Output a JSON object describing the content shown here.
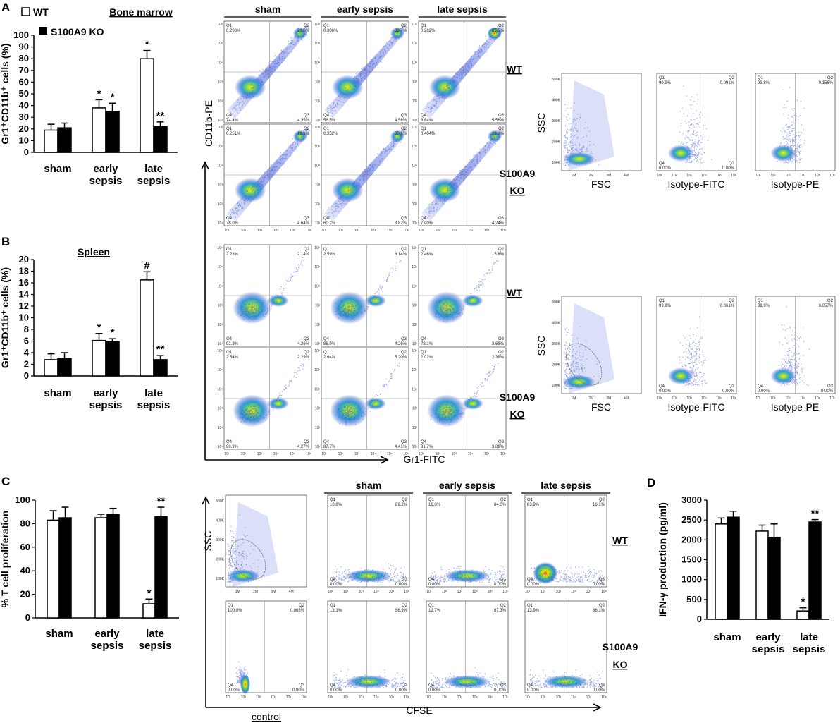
{
  "panels": {
    "a": "A",
    "b": "B",
    "c": "C",
    "d": "D"
  },
  "legend": {
    "wt": "WT",
    "ko": "S100A9 KO"
  },
  "chart_data": [
    {
      "id": "A",
      "type": "bar",
      "title": "Bone marrow",
      "ylabel": "Gr1⁺CD11b⁺ cells (%)",
      "ylim": [
        0,
        100
      ],
      "yticks": [
        0,
        10,
        20,
        30,
        40,
        50,
        60,
        70,
        80,
        90,
        100
      ],
      "categories": [
        "sham",
        "early\nsepsis",
        "late\nsepsis"
      ],
      "series": [
        {
          "name": "WT",
          "values": [
            19,
            38,
            80
          ],
          "errors": [
            5,
            7,
            7
          ],
          "marks": [
            "",
            "*",
            "*"
          ]
        },
        {
          "name": "S100A9 KO",
          "values": [
            21,
            35,
            22
          ],
          "errors": [
            4,
            7,
            4
          ],
          "marks": [
            "",
            "*",
            "**"
          ]
        }
      ]
    },
    {
      "id": "B",
      "type": "bar",
      "title": "Spleen",
      "ylabel": "Gr1⁺CD11b⁺ cells (%)",
      "ylim": [
        0,
        20
      ],
      "yticks": [
        0,
        2,
        4,
        6,
        8,
        10,
        12,
        14,
        16,
        18,
        20
      ],
      "categories": [
        "sham",
        "early\nsepsis",
        "late\nsepsis"
      ],
      "series": [
        {
          "name": "WT",
          "values": [
            2.8,
            6.1,
            16.5
          ],
          "errors": [
            1,
            1.2,
            1.4
          ],
          "marks": [
            "",
            "*",
            "#"
          ]
        },
        {
          "name": "S100A9 KO",
          "values": [
            3.0,
            5.9,
            2.8
          ],
          "errors": [
            1,
            0.5,
            0.7
          ],
          "marks": [
            "",
            "*",
            "**"
          ]
        }
      ]
    },
    {
      "id": "C",
      "type": "bar",
      "title": "",
      "ylabel": "% T cell proliferation",
      "ylim": [
        0,
        100
      ],
      "yticks": [
        0,
        20,
        40,
        60,
        80,
        100
      ],
      "categories": [
        "sham",
        "early\nsepsis",
        "late\nsepsis"
      ],
      "series": [
        {
          "name": "WT",
          "values": [
            83,
            85,
            12
          ],
          "errors": [
            8,
            3,
            4
          ],
          "marks": [
            "",
            "",
            "*"
          ]
        },
        {
          "name": "S100A9 KO",
          "values": [
            85,
            88,
            86
          ],
          "errors": [
            9,
            5,
            8
          ],
          "marks": [
            "",
            "",
            "**"
          ]
        }
      ]
    },
    {
      "id": "D",
      "type": "bar",
      "title": "",
      "ylabel": "IFN-γ production (pg/ml)",
      "ylim": [
        0,
        3000
      ],
      "yticks": [
        0,
        500,
        1000,
        1500,
        2000,
        2500,
        3000
      ],
      "categories": [
        "sham",
        "early\nsepsis",
        "late\nsepsis"
      ],
      "series": [
        {
          "name": "WT",
          "values": [
            2400,
            2220,
            210
          ],
          "errors": [
            150,
            150,
            80
          ],
          "marks": [
            "",
            "",
            "*"
          ]
        },
        {
          "name": "S100A9 KO",
          "values": [
            2570,
            2060,
            2450
          ],
          "errors": [
            150,
            340,
            60
          ],
          "marks": [
            "",
            "",
            "**"
          ]
        }
      ]
    }
  ],
  "flow": {
    "top_headers": [
      "sham",
      "early sepsis",
      "late sepsis"
    ],
    "ab_ylabel": "CD11b-PE",
    "ab_xlabel": "Gr1-FITC",
    "row_labels": {
      "wt": "WT",
      "ko_line1": "S100A9",
      "ko_line2": "KO"
    },
    "bm_wt": [
      [
        "0.298%",
        "21.0%",
        "74.4%",
        "4.35%"
      ],
      [
        "0.306%",
        "38.7%",
        "56.5%",
        "4.56%"
      ],
      [
        "0.282%",
        "85.5%",
        "8.64%",
        "5.58%"
      ]
    ],
    "bm_ko": [
      [
        "0.251%",
        "19.1%",
        "76.0%",
        "4.64%"
      ],
      [
        "0.352%",
        "35.6%",
        "60.2%",
        "3.82%"
      ],
      [
        "0.404%",
        "22.3%",
        "73.0%",
        "4.24%"
      ]
    ],
    "sp_wt": [
      [
        "2.28%",
        "2.14%",
        "91.3%",
        "4.26%"
      ],
      [
        "2.59%",
        "6.14%",
        "85.9%",
        "4.26%"
      ],
      [
        "2.46%",
        "15.8%",
        "78.1%",
        "3.68%"
      ]
    ],
    "sp_ko": [
      [
        "2.54%",
        "2.29%",
        "90.9%",
        "4.27%"
      ],
      [
        "2.64%",
        "5.20%",
        "87.7%",
        "4.41%"
      ],
      [
        "2.02%",
        "2.39%",
        "91.7%",
        "3.89%"
      ]
    ],
    "iso_a": {
      "fsc": "FSC",
      "ssc": "SSC",
      "fitc": "Isotype-FITC",
      "pe": "Isotype-PE",
      "fitc_q": [
        "99.9%",
        "0.091%",
        "0.00%",
        "0.00%"
      ],
      "pe_q": [
        "99.8%",
        "0.156%"
      ]
    },
    "iso_b": {
      "fsc": "FSC",
      "ssc": "SSC",
      "fitc": "Isotype-FITC",
      "pe": "Isotype-PE",
      "fitc_q": [
        "99.9%",
        "0.061%",
        "0.00%",
        "0.00%"
      ],
      "pe_q": [
        "99.9%",
        "0.057%",
        "0.00%",
        "0.00%"
      ]
    },
    "c_headers": [
      "sham",
      "early sepsis",
      "late sepsis"
    ],
    "c_xlabel": "CFSE",
    "c_control": "control",
    "c_ssc": "SSC",
    "c_wt": [
      [
        "10.8%",
        "89.2%"
      ],
      [
        "16.0%",
        "84.0%"
      ],
      [
        "83.9%",
        "16.1%"
      ]
    ],
    "c_ko": [
      [
        "13.1%",
        "86.9%"
      ],
      [
        "12.7%",
        "87.3%"
      ],
      [
        "13.9%",
        "86.1%"
      ]
    ],
    "c_control_q": [
      "100.0%",
      "0.008%"
    ],
    "quad_names": [
      "Q1",
      "Q2",
      "Q4",
      "Q3"
    ],
    "ssc_ticks": [
      "500K",
      "400K",
      "300K",
      "200K",
      "100K"
    ],
    "fsc_ticks": [
      "1M",
      "2M",
      "3M",
      "4M"
    ],
    "log_ticks": [
      "10¹",
      "10²",
      "10³",
      "10⁴",
      "10⁵",
      "10⁶"
    ]
  }
}
